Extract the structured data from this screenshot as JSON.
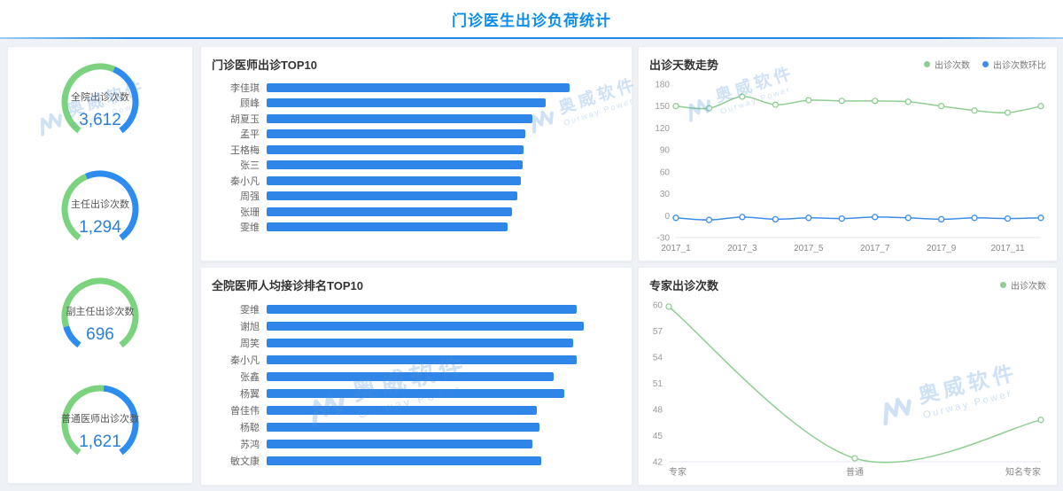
{
  "header": {
    "title": "门诊医生出诊负荷统计"
  },
  "watermark": {
    "cn": "奥威软件",
    "en": "Ourway Power"
  },
  "colors": {
    "accent_blue": "#1e88e5",
    "bar_blue": "#2f86e8",
    "gauge_green": "#7cd37f",
    "gauge_blue": "#2d8cf0",
    "line_green": "#8fce92",
    "line_blue": "#3c8de8",
    "value_blue": "#2a7fd8"
  },
  "chart_data": [
    {
      "type": "gauge",
      "label": "全院出诊次数",
      "value": "3,612",
      "segments": [
        {
          "color": "#7cd37f",
          "frac": 0.58
        },
        {
          "color": "#2d8cf0",
          "frac": 0.42
        }
      ]
    },
    {
      "type": "gauge",
      "label": "主任出诊次数",
      "value": "1,294",
      "segments": [
        {
          "color": "#7cd37f",
          "frac": 0.42
        },
        {
          "color": "#2d8cf0",
          "frac": 0.58
        }
      ]
    },
    {
      "type": "gauge",
      "label": "副主任出诊次数",
      "value": "696",
      "segments": [
        {
          "color": "#2d8cf0",
          "frac": 0.13
        },
        {
          "color": "#7cd37f",
          "frac": 0.87
        }
      ]
    },
    {
      "type": "gauge",
      "label": "普通医师出诊次数",
      "value": "1,621",
      "segments": [
        {
          "color": "#7cd37f",
          "frac": 0.52
        },
        {
          "color": "#2d8cf0",
          "frac": 0.48
        }
      ]
    },
    {
      "type": "bar",
      "orientation": "horizontal",
      "title": "门诊医师出诊TOP10",
      "categories": [
        "李佳琪",
        "顾峰",
        "胡夏玉",
        "孟平",
        "王格梅",
        "张三",
        "秦小凡",
        "周强",
        "张珊",
        "雯维"
      ],
      "values": [
        181,
        167,
        159,
        155,
        154,
        153,
        152,
        150,
        147,
        144
      ],
      "xmax": 212,
      "bar_color": "#2f86e8"
    },
    {
      "type": "bar",
      "orientation": "horizontal",
      "title": "全院医师人均接诊排名TOP10",
      "categories": [
        "雯维",
        "谢旭",
        "周笑",
        "秦小凡",
        "张鑫",
        "杨翼",
        "曾佳伟",
        "杨聪",
        "苏鸿",
        "敏文康"
      ],
      "values": [
        58.6,
        59.9,
        58.0,
        58.6,
        54.3,
        56.2,
        51.1,
        51.6,
        50.3,
        51.9
      ],
      "xmax": 67,
      "bar_color": "#2f86e8"
    },
    {
      "type": "line",
      "title": "出诊天数走势",
      "x": [
        "2017_1",
        "2017_2",
        "2017_3",
        "2017_4",
        "2017_5",
        "2017_6",
        "2017_7",
        "2017_8",
        "2017_9",
        "2017_10",
        "2017_11",
        "2017_12"
      ],
      "x_labels_shown": [
        "2017_1",
        "2017_3",
        "2017_5",
        "2017_7",
        "2017_9",
        "2017_11"
      ],
      "ylim": [
        -30,
        180
      ],
      "yticks": [
        180,
        150,
        120,
        90,
        60,
        30,
        0,
        -30
      ],
      "legend_position": "top-right",
      "series": [
        {
          "name": "出诊次数",
          "color": "#8fce92",
          "values": [
            150,
            147,
            163,
            152,
            158,
            157,
            157,
            156,
            150,
            144,
            141,
            150
          ]
        },
        {
          "name": "出诊次数环比",
          "color": "#3c8de8",
          "values": [
            -3,
            -6,
            -2,
            -5,
            -3,
            -4,
            -2,
            -3,
            -5,
            -3,
            -4,
            -3
          ]
        }
      ]
    },
    {
      "type": "line",
      "title": "专家出诊次数",
      "x": [
        "专家",
        "普通",
        "知名专家"
      ],
      "x_label_anchors": [
        "start",
        "middle",
        "end"
      ],
      "ylim": [
        42,
        60
      ],
      "yticks": [
        60,
        57,
        54,
        51,
        48,
        45,
        42
      ],
      "legend_position": "top-right",
      "series": [
        {
          "name": "出诊次数",
          "color": "#8fce92",
          "values": [
            59.8,
            42.4,
            46.8
          ]
        }
      ]
    }
  ]
}
